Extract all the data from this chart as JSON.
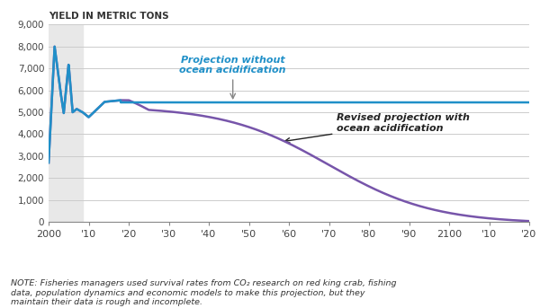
{
  "ylabel": "YIELD IN METRIC TONS",
  "ylim": [
    0,
    9000
  ],
  "yticks": [
    0,
    1000,
    2000,
    3000,
    4000,
    5000,
    6000,
    7000,
    8000,
    9000
  ],
  "ytick_labels": [
    "0",
    "1,000",
    "2,000",
    "3,000",
    "4,000",
    "5,000",
    "6,000",
    "7,000",
    "8,000",
    "9,000"
  ],
  "xtick_positions": [
    2000,
    2010,
    2020,
    2030,
    2040,
    2050,
    2060,
    2070,
    2080,
    2090,
    2100,
    2110,
    2120
  ],
  "xtick_labels": [
    "2000",
    "'10",
    "'20",
    "'30",
    "'40",
    "'50",
    "'60",
    "'70",
    "'80",
    "'90",
    "2100",
    "'10",
    "'20"
  ],
  "shaded_region_start": 2000,
  "shaded_region_end": 2008.5,
  "shaded_color": "#e8e8e8",
  "line_flat_color": "#2090c8",
  "line_curved_color": "#7755aa",
  "flat_line_y": 5450,
  "note_text": "NOTE: Fisheries managers used survival rates from CO₂ research on red king crab, fishing\ndata, population dynamics and economic models to make this projection, but they\nmaintain their data is rough and incomplete.",
  "annotation1_text": "Projection without\nocean acidification",
  "annotation1_color": "#2090c8",
  "annotation2_text": "Revised projection with\nocean acidification",
  "annotation2_color": "#222222",
  "background_color": "#ffffff",
  "x_start": 2000,
  "x_end": 2120
}
